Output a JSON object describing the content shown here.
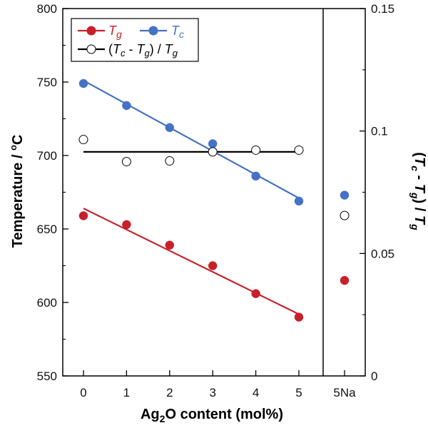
{
  "chart_data": {
    "type": "scatter",
    "x_categories": [
      "0",
      "1",
      "2",
      "3",
      "4",
      "5",
      "5Na"
    ],
    "x_values": [
      0,
      1,
      2,
      3,
      4,
      5
    ],
    "xlabel": "Ag2O content (mol%)",
    "ylabel_left": "Temperature / °C",
    "ylabel_right": "(Tc - Tg) / Tg",
    "ylim_left": [
      550,
      800
    ],
    "yticks_left": [
      550,
      600,
      650,
      700,
      750,
      800
    ],
    "ylim_right": [
      0,
      0.15
    ],
    "yticks_right": [
      "0",
      "0.05",
      "0.1",
      "0.15"
    ],
    "grid": false,
    "legend_position": "top-left",
    "series": [
      {
        "name": "Tg",
        "axis": "left",
        "color": "#c8202a",
        "marker": "filled-circle",
        "values": [
          659,
          653,
          639,
          625,
          606,
          590
        ],
        "fit_line": [
          664,
          592
        ],
        "extra_point": {
          "category": "5Na",
          "value": 615
        }
      },
      {
        "name": "Tc",
        "axis": "left",
        "color": "#4472c4",
        "marker": "filled-circle",
        "values": [
          749,
          734,
          719,
          708,
          686,
          669
        ],
        "fit_line": [
          751,
          671
        ],
        "extra_point": {
          "category": "5Na",
          "value": 673
        }
      },
      {
        "name": "(Tc - Tg) / Tg",
        "axis": "right",
        "color": "#000000",
        "marker": "open-circle",
        "values": [
          0.0965,
          0.0875,
          0.0878,
          0.0915,
          0.0922,
          0.0922
        ],
        "fit_line": [
          0.0915,
          0.0915
        ],
        "extra_point": {
          "category": "5Na",
          "value": 0.0655
        }
      }
    ]
  }
}
